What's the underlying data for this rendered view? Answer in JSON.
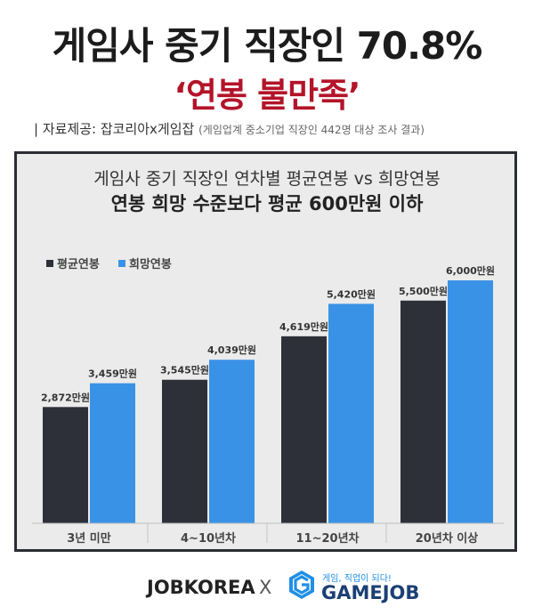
{
  "header": {
    "headline": "게임사 중기 직장인 70.8%",
    "subhead": "‘연봉 불만족’",
    "source_label": "| 자료제공: 잡코리아x게임잡",
    "source_note": "(게임업계 중소기업 직장인 442명 대상 조사 결과)"
  },
  "chart_data": {
    "type": "bar",
    "title": "게임사 중기 직장인 연차별 평균연봉 vs 희망연봉",
    "subtitle": "연봉 희망 수준보다 평균 600만원 이하",
    "categories": [
      "3년 미만",
      "4~10년차",
      "11~20년차",
      "20년차 이상"
    ],
    "series": [
      {
        "name": "평균연봉",
        "values": [
          2872,
          3545,
          4619,
          5500
        ],
        "labels": [
          "2,872만원",
          "3,545만원",
          "4,619만원",
          "5,500만원"
        ],
        "color": "#2e3039"
      },
      {
        "name": "희망연봉",
        "values": [
          3459,
          4039,
          5420,
          6000
        ],
        "labels": [
          "3,459만원",
          "4,039만원",
          "5,420만원",
          "6,000만원"
        ],
        "color": "#3a92e6"
      }
    ],
    "ylim": [
      0,
      6000
    ],
    "grid": false,
    "legend_position": "top-left"
  },
  "footer": {
    "brand1": "JOBKOREA",
    "times": "X",
    "brand2_tagline": "게임, 직업이 되다!",
    "brand2": "GAMEJOB"
  },
  "colors": {
    "accent_red": "#b31429",
    "dark_bar": "#2e3039",
    "blue_bar": "#3a92e6",
    "panel_bg": "#ebebeb",
    "gamejob_blue": "#1f8fe8"
  }
}
